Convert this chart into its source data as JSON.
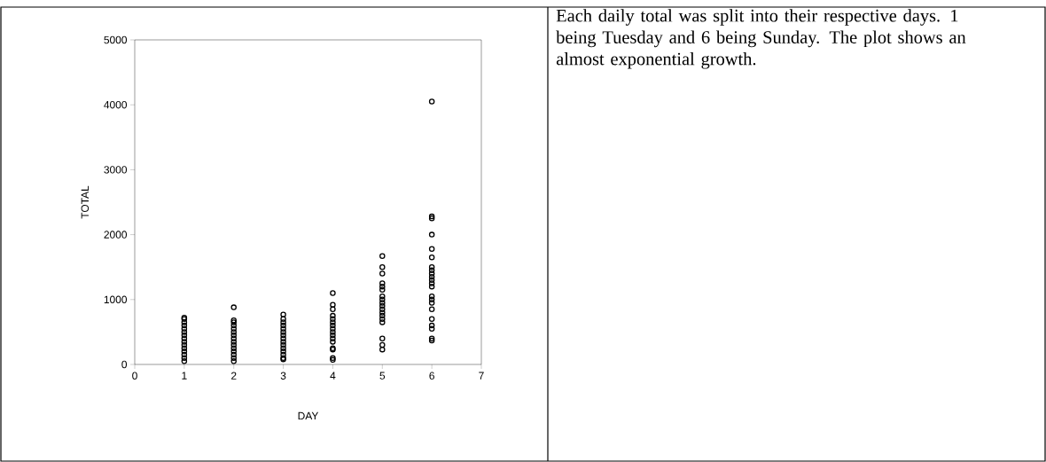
{
  "chart_data": {
    "type": "scatter",
    "xlabel": "DAY",
    "ylabel": "TOTAL",
    "annotations": [
      "Each daily total was split into their respective days.  1 being Tuesday and 6 being Sunday.  The plot shows an almost exponential growth."
    ],
    "xlim": [
      0,
      7
    ],
    "xticks": [
      0,
      1,
      2,
      3,
      4,
      5,
      6,
      7
    ],
    "ylim": [
      0,
      5000
    ],
    "yticks": [
      0,
      1000,
      2000,
      3000,
      4000,
      5000
    ],
    "grid": false,
    "marker": "circle",
    "series": [
      {
        "color": "#000000",
        "x": [
          1,
          1,
          1,
          1,
          1,
          1,
          1,
          1,
          1,
          1,
          1,
          1,
          1,
          1,
          1,
          2,
          2,
          2,
          2,
          2,
          2,
          2,
          2,
          2,
          2,
          2,
          2,
          2,
          2,
          2,
          3,
          3,
          3,
          3,
          3,
          3,
          3,
          3,
          3,
          3,
          3,
          3,
          3,
          3,
          3,
          4,
          4,
          4,
          4,
          4,
          4,
          4,
          4,
          4,
          4,
          4,
          4,
          4,
          4,
          4,
          4,
          5,
          5,
          5,
          5,
          5,
          5,
          5,
          5,
          5,
          5,
          5,
          5,
          5,
          5,
          5,
          5,
          5,
          5,
          6,
          6,
          6,
          6,
          6,
          6,
          6,
          6,
          6,
          6,
          6,
          6,
          6,
          6,
          6,
          6,
          6,
          6,
          6,
          6,
          6,
          6
        ],
        "values": [
          50,
          100,
          150,
          200,
          250,
          300,
          350,
          400,
          450,
          500,
          550,
          600,
          650,
          700,
          720,
          50,
          100,
          150,
          200,
          250,
          300,
          350,
          400,
          450,
          500,
          550,
          600,
          650,
          680,
          880,
          80,
          100,
          150,
          200,
          250,
          300,
          350,
          400,
          450,
          500,
          550,
          600,
          650,
          700,
          770,
          70,
          100,
          230,
          250,
          350,
          400,
          450,
          500,
          550,
          600,
          650,
          700,
          750,
          850,
          920,
          1100,
          230,
          300,
          400,
          650,
          700,
          750,
          800,
          850,
          900,
          950,
          1000,
          1050,
          1150,
          1200,
          1250,
          1400,
          1500,
          1670,
          370,
          400,
          550,
          600,
          700,
          850,
          950,
          1000,
          1050,
          1200,
          1250,
          1300,
          1350,
          1400,
          1450,
          1500,
          1650,
          1780,
          2000,
          2250,
          2280,
          4050
        ]
      }
    ]
  }
}
